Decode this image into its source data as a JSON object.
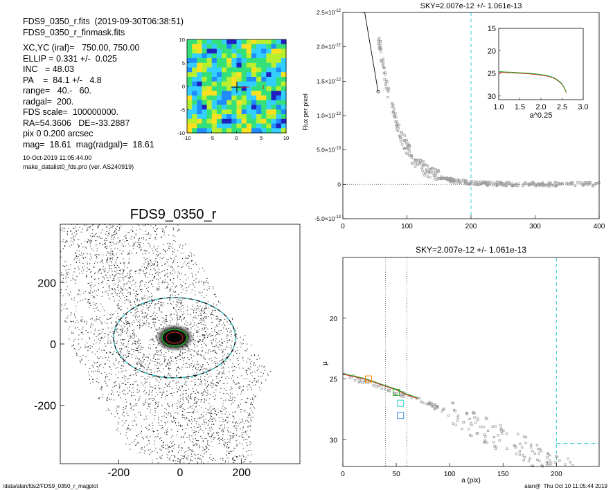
{
  "info": {
    "lines": [
      "FDS9_0350_r.fits  (2019-09-30T06:38:51)",
      "FDS9_0350_r_finmask.fits",
      "",
      "XC,YC (iraf)=   750.00, 750.00",
      "ELLIP = 0.331 +/-  0.025",
      "INC   = 48.03",
      "PA    =  84.1 +/-   4.8",
      "range=   40.-   60.",
      "radgal=  200.",
      "FDS scale=  100000000.",
      "RA=54.3606   DE=-33.2887",
      "pix 0 0.200 arcsec",
      "mag=  18.61  mag(radgal)=  18.61"
    ],
    "small_lines": [
      "10-Oct-2019 11:05:44.00",
      "make_datalist0_fds.pro (ver. AS240919)"
    ]
  },
  "footer": {
    "left": "/data/alan/fds2/FDS9_0350_r_magplot",
    "right": "alan@  Thu Oct 10 11:05:44 2019"
  },
  "colors": {
    "cyan": "#33cccc",
    "green": "#22aa22",
    "red": "#dd2222",
    "orange": "#ff8800",
    "gray": "#999999"
  },
  "chart_data": [
    {
      "id": "residual_map",
      "type": "heatmap",
      "title": "",
      "xlabel": "",
      "ylabel": "",
      "xlim": [
        -10,
        10
      ],
      "ylim": [
        -10,
        10
      ],
      "xticks": [
        "-10",
        "-5",
        "0",
        "5",
        "10"
      ],
      "yticks": [
        "10",
        "5",
        "0",
        "-5",
        "-10"
      ],
      "colormap": [
        "#2020c0",
        "#1e8cff",
        "#33d0ff",
        "#34e07a",
        "#b8f030",
        "#ffe020"
      ]
    },
    {
      "id": "image",
      "type": "scatter",
      "title": "FDS9_0350_r",
      "xlabel": "",
      "ylabel": "",
      "xlim": [
        -390,
        390
      ],
      "ylim": [
        -390,
        390
      ],
      "xticks": [
        "-200",
        "0",
        "200"
      ],
      "yticks": [
        "200",
        "0",
        "-200"
      ],
      "ellipse_center": [
        0,
        0
      ],
      "ellipse_a": 200,
      "ellipse_b": 134,
      "ellipse_pa": 84.1
    },
    {
      "id": "flux_profile",
      "type": "scatter",
      "title": "SKY=2.007e-12 +/- 1.061e-13",
      "xlabel": "",
      "ylabel": "Flux per pixel",
      "xlim": [
        0,
        400
      ],
      "ylim": [
        -5e-13,
        2.5e-12
      ],
      "xticks": [
        "0",
        "100",
        "200",
        "300",
        "400"
      ],
      "yticks": [
        {
          "v": 2.5e-12,
          "m": "2.5",
          "e": "-12"
        },
        {
          "v": 2e-12,
          "m": "2.0",
          "e": "-12"
        },
        {
          "v": 1.5e-12,
          "m": "1.5",
          "e": "-12"
        },
        {
          "v": 1e-12,
          "m": "1.0",
          "e": "-12"
        },
        {
          "v": 5e-13,
          "m": "5.0",
          "e": "-13"
        },
        {
          "v": 0,
          "m": "0",
          "e": ""
        },
        {
          "v": -5e-13,
          "m": "-5.0",
          "e": "-13"
        }
      ],
      "cyan_vline_x": 200,
      "zero_line_y": 0
    },
    {
      "id": "inset_profile",
      "type": "line",
      "title": "",
      "xlabel": "a^0.25",
      "ylabel": "",
      "xlim": [
        1.0,
        3.0
      ],
      "ylim": [
        15,
        30.8
      ],
      "xticks": [
        "1.0",
        "1.5",
        "2.0",
        "2.5",
        "3.0"
      ],
      "yticks": [
        "15",
        "20",
        "25",
        "30"
      ],
      "series": [
        {
          "x": [
            1.0,
            1.1,
            1.2,
            1.3,
            1.4,
            1.5,
            1.6,
            1.7,
            1.8,
            1.9,
            2.0,
            2.1,
            2.2,
            2.3,
            2.4,
            2.5,
            2.55,
            2.6
          ],
          "y": [
            24.7,
            24.75,
            24.8,
            24.85,
            24.9,
            24.95,
            25.0,
            25.05,
            25.15,
            25.25,
            25.35,
            25.5,
            25.7,
            26.0,
            26.6,
            27.4,
            28.2,
            29.2
          ]
        }
      ]
    },
    {
      "id": "mu_profile",
      "type": "scatter",
      "title": "SKY=2.007e-12 +/- 1.061e-13",
      "xlabel": "a (pix)",
      "ylabel": "μ",
      "xlim": [
        0,
        240
      ],
      "ylim": [
        15,
        32.2
      ],
      "xticks": [
        "0",
        "50",
        "100",
        "150",
        "200"
      ],
      "yticks": [
        "20",
        "25",
        "30"
      ],
      "dotted_vlines_x": [
        40,
        60
      ],
      "cyan_vline_x": 200,
      "cyan_hline_y": 30.3,
      "profile": {
        "x": [
          0,
          10,
          20,
          30,
          40,
          50,
          60,
          70
        ],
        "y": [
          24.6,
          24.8,
          25.0,
          25.3,
          25.6,
          25.9,
          26.3,
          26.6
        ]
      },
      "markers": [
        {
          "x": 24,
          "y": 25.0,
          "color": "#ff8800"
        },
        {
          "x": 50,
          "y": 26.1,
          "color": "#22aa22"
        },
        {
          "x": 54,
          "y": 27.0,
          "color": "#33cccc"
        },
        {
          "x": 54,
          "y": 28.0,
          "color": "#3388dd"
        }
      ]
    }
  ]
}
